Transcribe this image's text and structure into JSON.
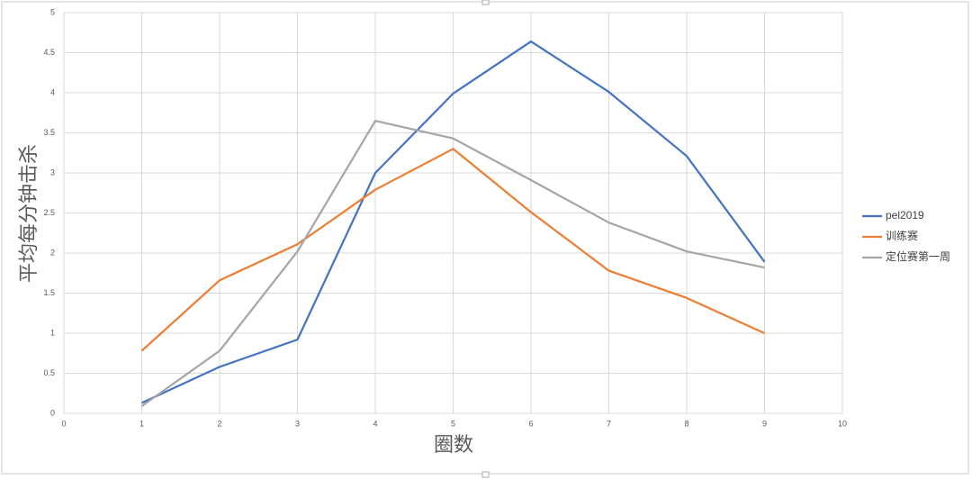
{
  "chart_data": {
    "type": "line",
    "x_label": "圈数",
    "y_label": "平均每分钟击杀",
    "x": [
      1,
      2,
      3,
      4,
      5,
      6,
      7,
      8,
      9
    ],
    "series": [
      {
        "name": "pel2019",
        "color": "#4472c4",
        "values": [
          0.13,
          0.58,
          0.92,
          3.0,
          3.99,
          4.64,
          4.01,
          3.21,
          1.89
        ]
      },
      {
        "name": "训练赛",
        "color": "#ed7d31",
        "values": [
          0.78,
          1.66,
          2.11,
          2.79,
          3.3,
          2.51,
          1.78,
          1.44,
          1.0
        ]
      },
      {
        "name": "定位赛第一周",
        "color": "#a5a5a5",
        "values": [
          0.09,
          0.78,
          2.02,
          3.65,
          3.43,
          2.91,
          2.38,
          2.02,
          1.82
        ]
      }
    ],
    "xlim": [
      0,
      10
    ],
    "xticks": [
      0,
      1,
      2,
      3,
      4,
      5,
      6,
      7,
      8,
      9,
      10
    ],
    "ylim": [
      0,
      5
    ],
    "yticks": [
      0,
      0.5,
      1,
      1.5,
      2,
      2.5,
      3,
      3.5,
      4,
      4.5,
      5
    ],
    "grid": true,
    "legend": "right"
  }
}
